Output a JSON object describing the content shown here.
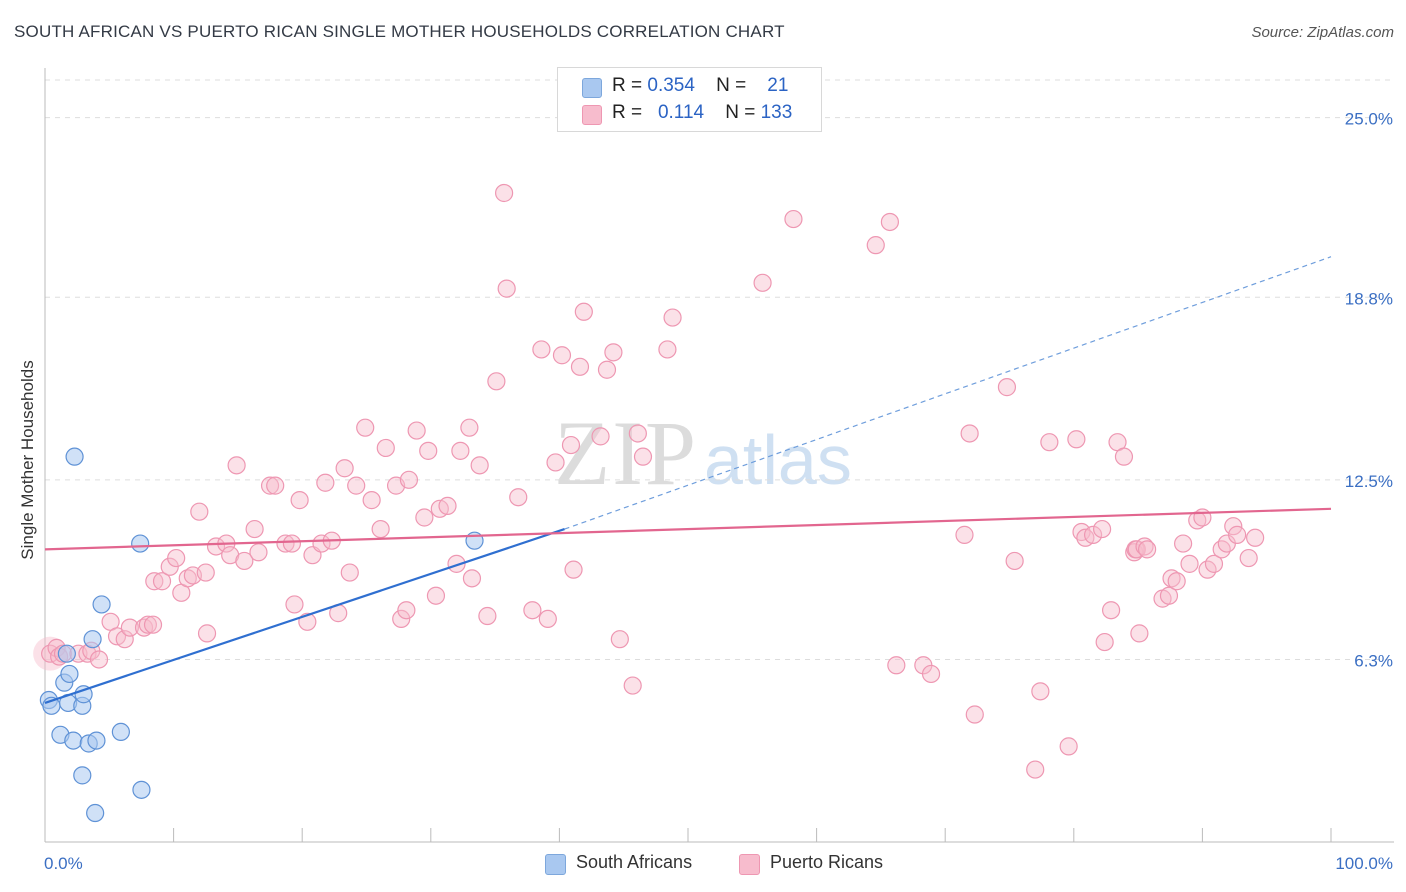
{
  "header": {
    "title": "SOUTH AFRICAN VS PUERTO RICAN SINGLE MOTHER HOUSEHOLDS CORRELATION CHART",
    "source": "Source: ZipAtlas.com"
  },
  "watermark": {
    "zip": "ZIP",
    "atlas": "atlas"
  },
  "legend": {
    "south_africans": {
      "r_label": "R =",
      "r_value": "0.354",
      "n_label": "N =",
      "n_value": "21",
      "color": "#a9c8f0",
      "border": "#7da7dc"
    },
    "puerto_ricans": {
      "r_label": "R =",
      "r_value": "0.114",
      "n_label": "N =",
      "n_value": "133",
      "color": "#f7bccd",
      "border": "#ee97b2"
    }
  },
  "chart_data": {
    "type": "scatter",
    "title": "SOUTH AFRICAN VS PUERTO RICAN SINGLE MOTHER HOUSEHOLDS CORRELATION CHART",
    "xlabel": "",
    "ylabel": "Single Mother Households",
    "xlim": [
      0,
      100
    ],
    "ylim": [
      0,
      26.3
    ],
    "x_tick_labels": [
      "0.0%",
      "100.0%"
    ],
    "y_ticks": [
      6.3,
      12.5,
      18.8,
      25.0
    ],
    "y_tick_labels": [
      "6.3%",
      "12.5%",
      "18.8%",
      "25.0%"
    ],
    "grid": "horizontal dashed",
    "legend_position": "top-center and bottom",
    "series": [
      {
        "name": "South Africans",
        "color": "#6fa2e2",
        "trend": {
          "x0": 0,
          "y0": 4.8,
          "x1": 40.4,
          "y1": 10.8,
          "dashed_to": [
            100,
            20.2
          ],
          "color": "#2f6fd0"
        },
        "points": [
          [
            0.3,
            4.9
          ],
          [
            0.5,
            4.7
          ],
          [
            1.2,
            3.7
          ],
          [
            1.5,
            5.5
          ],
          [
            1.7,
            6.5
          ],
          [
            1.8,
            4.8
          ],
          [
            1.9,
            5.8
          ],
          [
            2.2,
            3.5
          ],
          [
            2.3,
            13.3
          ],
          [
            2.9,
            4.7
          ],
          [
            2.9,
            2.3
          ],
          [
            3.0,
            5.1
          ],
          [
            3.4,
            3.4
          ],
          [
            3.7,
            7.0
          ],
          [
            3.9,
            1.0
          ],
          [
            4.0,
            3.5
          ],
          [
            4.4,
            8.2
          ],
          [
            5.9,
            3.8
          ],
          [
            7.4,
            10.3
          ],
          [
            7.5,
            1.8
          ],
          [
            33.4,
            10.4
          ]
        ]
      },
      {
        "name": "Puerto Ricans",
        "color": "#f3a5bd",
        "trend": {
          "x0": 0,
          "y0": 10.1,
          "x1": 100,
          "y1": 11.5,
          "color": "#e2668f"
        },
        "points": [
          [
            0.4,
            6.5
          ],
          [
            0.9,
            6.7
          ],
          [
            1.1,
            6.4
          ],
          [
            1.4,
            6.5
          ],
          [
            2.6,
            6.5
          ],
          [
            3.3,
            6.5
          ],
          [
            3.6,
            6.6
          ],
          [
            4.2,
            6.3
          ],
          [
            5.1,
            7.6
          ],
          [
            5.6,
            7.1
          ],
          [
            6.2,
            7.0
          ],
          [
            6.6,
            7.4
          ],
          [
            7.7,
            7.4
          ],
          [
            8.0,
            7.5
          ],
          [
            8.4,
            7.5
          ],
          [
            8.5,
            9.0
          ],
          [
            9.1,
            9.0
          ],
          [
            9.7,
            9.5
          ],
          [
            10.2,
            9.8
          ],
          [
            10.6,
            8.6
          ],
          [
            11.1,
            9.1
          ],
          [
            11.5,
            9.2
          ],
          [
            12.0,
            11.4
          ],
          [
            12.5,
            9.3
          ],
          [
            12.6,
            7.2
          ],
          [
            13.3,
            10.2
          ],
          [
            14.1,
            10.3
          ],
          [
            14.4,
            9.9
          ],
          [
            14.9,
            13.0
          ],
          [
            15.5,
            9.7
          ],
          [
            16.3,
            10.8
          ],
          [
            16.6,
            10.0
          ],
          [
            17.5,
            12.3
          ],
          [
            17.9,
            12.3
          ],
          [
            18.7,
            10.3
          ],
          [
            19.2,
            10.3
          ],
          [
            19.4,
            8.2
          ],
          [
            19.8,
            11.8
          ],
          [
            20.4,
            7.6
          ],
          [
            20.8,
            9.9
          ],
          [
            21.5,
            10.3
          ],
          [
            21.8,
            12.4
          ],
          [
            22.3,
            10.4
          ],
          [
            22.8,
            7.9
          ],
          [
            23.3,
            12.9
          ],
          [
            23.7,
            9.3
          ],
          [
            24.2,
            12.3
          ],
          [
            24.9,
            14.3
          ],
          [
            25.4,
            11.8
          ],
          [
            26.1,
            10.8
          ],
          [
            26.5,
            13.6
          ],
          [
            27.3,
            12.3
          ],
          [
            27.7,
            7.7
          ],
          [
            28.1,
            8.0
          ],
          [
            28.3,
            12.5
          ],
          [
            28.9,
            14.2
          ],
          [
            29.5,
            11.2
          ],
          [
            29.8,
            13.5
          ],
          [
            30.4,
            8.5
          ],
          [
            30.7,
            11.5
          ],
          [
            31.3,
            11.6
          ],
          [
            32.0,
            9.6
          ],
          [
            32.3,
            13.5
          ],
          [
            33.0,
            14.3
          ],
          [
            33.2,
            9.1
          ],
          [
            33.8,
            13.0
          ],
          [
            34.4,
            7.8
          ],
          [
            35.1,
            15.9
          ],
          [
            35.7,
            22.4
          ],
          [
            35.9,
            19.1
          ],
          [
            36.8,
            11.9
          ],
          [
            37.9,
            8.0
          ],
          [
            38.6,
            17.0
          ],
          [
            39.1,
            7.7
          ],
          [
            39.7,
            13.1
          ],
          [
            40.2,
            16.8
          ],
          [
            40.9,
            13.7
          ],
          [
            41.1,
            9.4
          ],
          [
            41.6,
            16.4
          ],
          [
            41.9,
            18.3
          ],
          [
            43.2,
            14.0
          ],
          [
            43.7,
            16.3
          ],
          [
            44.2,
            16.9
          ],
          [
            44.7,
            7.0
          ],
          [
            45.7,
            5.4
          ],
          [
            46.1,
            14.1
          ],
          [
            46.5,
            13.3
          ],
          [
            48.4,
            17.0
          ],
          [
            48.8,
            18.1
          ],
          [
            55.8,
            19.3
          ],
          [
            58.2,
            21.5
          ],
          [
            64.6,
            20.6
          ],
          [
            65.7,
            21.4
          ],
          [
            66.2,
            6.1
          ],
          [
            68.3,
            6.1
          ],
          [
            68.9,
            5.8
          ],
          [
            71.5,
            10.6
          ],
          [
            71.9,
            14.1
          ],
          [
            72.3,
            4.4
          ],
          [
            74.8,
            15.7
          ],
          [
            75.4,
            9.7
          ],
          [
            77.0,
            2.5
          ],
          [
            77.4,
            5.2
          ],
          [
            78.1,
            13.8
          ],
          [
            79.6,
            3.3
          ],
          [
            80.2,
            13.9
          ],
          [
            80.6,
            10.7
          ],
          [
            80.9,
            10.5
          ],
          [
            81.5,
            10.6
          ],
          [
            82.2,
            10.8
          ],
          [
            82.4,
            6.9
          ],
          [
            82.9,
            8.0
          ],
          [
            83.4,
            13.8
          ],
          [
            83.9,
            13.3
          ],
          [
            84.7,
            10.0
          ],
          [
            84.8,
            10.1
          ],
          [
            84.9,
            10.1
          ],
          [
            85.1,
            7.2
          ],
          [
            85.5,
            10.2
          ],
          [
            85.7,
            10.1
          ],
          [
            86.9,
            8.4
          ],
          [
            87.4,
            8.5
          ],
          [
            87.6,
            9.1
          ],
          [
            88.0,
            9.0
          ],
          [
            88.5,
            10.3
          ],
          [
            89.0,
            9.6
          ],
          [
            89.6,
            11.1
          ],
          [
            90.0,
            11.2
          ],
          [
            90.4,
            9.4
          ],
          [
            90.9,
            9.6
          ],
          [
            91.5,
            10.1
          ],
          [
            91.9,
            10.3
          ],
          [
            92.4,
            10.9
          ],
          [
            92.7,
            10.6
          ],
          [
            93.6,
            9.8
          ],
          [
            94.1,
            10.5
          ]
        ]
      }
    ]
  }
}
